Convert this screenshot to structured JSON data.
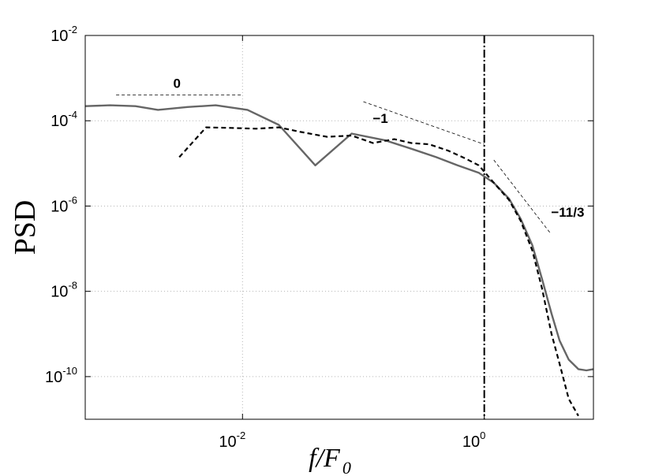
{
  "chart_data": {
    "type": "line",
    "title": "",
    "xlabel": {
      "base": "f/F",
      "sub": "0"
    },
    "ylabel": "PSD",
    "xscale": "log",
    "yscale": "log",
    "xlim": [
      0.0005,
      8
    ],
    "ylim": [
      1e-11,
      0.01
    ],
    "grid": "dotted",
    "x_ticks": [
      {
        "value": 0.01,
        "base": "10",
        "exp": "-2"
      },
      {
        "value": 1,
        "base": "10",
        "exp": "0"
      }
    ],
    "y_ticks": [
      {
        "value": 0.01,
        "base": "10",
        "exp": "-2"
      },
      {
        "value": 0.0001,
        "base": "10",
        "exp": "-4"
      },
      {
        "value": 1e-06,
        "base": "10",
        "exp": "-6"
      },
      {
        "value": 1e-08,
        "base": "10",
        "exp": "-8"
      },
      {
        "value": 1e-10,
        "base": "10",
        "exp": "-10"
      }
    ],
    "series": [
      {
        "style": "solid",
        "color": "#666666",
        "x": [
          0.0005,
          0.0008,
          0.0013,
          0.002,
          0.0035,
          0.006,
          0.011,
          0.02,
          0.04,
          0.08,
          0.15,
          0.25,
          0.4,
          0.6,
          0.9,
          1.2,
          1.6,
          2.0,
          2.5,
          3.0,
          3.6,
          4.2,
          5.0,
          6.0,
          7.0,
          8.0
        ],
        "y": [
          0.00022,
          0.00023,
          0.00022,
          0.00018,
          0.00021,
          0.00023,
          0.00018,
          8e-05,
          9e-06,
          5e-05,
          3.5e-05,
          2.2e-05,
          1.4e-05,
          9e-06,
          6e-06,
          3.5e-06,
          1.5e-06,
          5e-07,
          1.2e-07,
          2e-08,
          3e-09,
          7e-10,
          2.5e-10,
          1.5e-10,
          1.4e-10,
          1.5e-10
        ]
      },
      {
        "style": "dashed",
        "color": "#000000",
        "x": [
          0.003,
          0.005,
          0.008,
          0.013,
          0.02,
          0.03,
          0.05,
          0.08,
          0.12,
          0.18,
          0.25,
          0.35,
          0.5,
          0.7,
          0.9,
          1.2,
          1.6,
          2.0,
          2.5,
          3.0,
          3.6,
          4.2,
          5.0,
          6.0
        ],
        "y": [
          1.4e-05,
          7e-05,
          6.8e-05,
          6.5e-05,
          7e-05,
          5.5e-05,
          4.2e-05,
          4.5e-05,
          3e-05,
          3.7e-05,
          3e-05,
          2.8e-05,
          2e-05,
          1.3e-05,
          9e-06,
          3.5e-06,
          1.4e-06,
          4.5e-07,
          9e-08,
          1.2e-08,
          1e-09,
          2e-10,
          3e-11,
          1.2e-11
        ]
      }
    ],
    "annotations": [
      {
        "label": "0",
        "x1": 0.0009,
        "y1": 0.0004,
        "x2": 0.01,
        "y2": 0.0004
      },
      {
        "label": "−1",
        "x1": 0.1,
        "y1": 0.00028,
        "x2": 1,
        "y2": 2.8e-05
      },
      {
        "label": "−11/3",
        "x1": 1.2,
        "y1": 1.2e-05,
        "x2": 3.5,
        "y2": 2.36e-07
      }
    ],
    "vline": {
      "x": 1,
      "style": "dash-dot"
    }
  }
}
